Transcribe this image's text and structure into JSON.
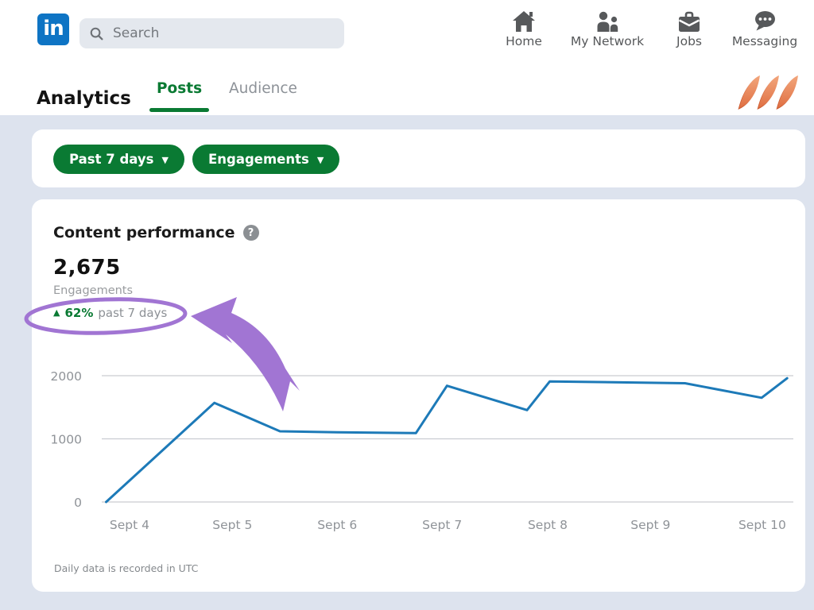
{
  "header": {
    "logo_text": "in",
    "search_placeholder": "Search",
    "nav": [
      {
        "label": "Home"
      },
      {
        "label": "My Network"
      },
      {
        "label": "Jobs"
      },
      {
        "label": "Messaging"
      }
    ]
  },
  "analytics": {
    "title": "Analytics",
    "tabs": [
      {
        "label": "Posts",
        "active": true
      },
      {
        "label": "Audience",
        "active": false
      }
    ]
  },
  "filters": {
    "date_range": "Past 7 days",
    "metric": "Engagements",
    "caret": "▼"
  },
  "card": {
    "title": "Content performance",
    "help_glyph": "?",
    "metric_value": "2,675",
    "metric_label": "Engagements",
    "trend": {
      "arrow": "▲",
      "percent": "62%",
      "period": "past 7 days"
    },
    "footnote": "Daily data is recorded in UTC"
  },
  "chart_data": {
    "type": "line",
    "title": "Content performance",
    "ylabel": "Engagements",
    "xlabel": "",
    "x_tick_labels": [
      "Sept 4",
      "Sept 5",
      "Sept 6",
      "Sept 7",
      "Sept 8",
      "Sept 9",
      "Sept 10"
    ],
    "x_tick_positions": [
      0.038,
      0.187,
      0.339,
      0.491,
      0.644,
      0.793,
      0.955
    ],
    "y_ticks": [
      0,
      1000,
      2000
    ],
    "ylim": [
      0,
      2400
    ],
    "grid": true,
    "legend": false,
    "series": [
      {
        "name": "Engagements",
        "color": "#1d7ab8",
        "points": [
          [
            0.004,
            0
          ],
          [
            0.161,
            1570
          ],
          [
            0.256,
            1120
          ],
          [
            0.339,
            1105
          ],
          [
            0.453,
            1090
          ],
          [
            0.498,
            1840
          ],
          [
            0.614,
            1455
          ],
          [
            0.647,
            1910
          ],
          [
            0.843,
            1880
          ],
          [
            0.954,
            1650
          ],
          [
            0.991,
            1960
          ]
        ]
      }
    ]
  },
  "colors": {
    "accent_green": "#0a7a33",
    "linkedin_blue": "#0e74c4",
    "chart_line_blue": "#1d7ab8",
    "annotation_purple": "#a175d3",
    "brand_orange": "#e8855d",
    "page_background": "#dde3ee",
    "gridline": "#c9ccd1"
  }
}
